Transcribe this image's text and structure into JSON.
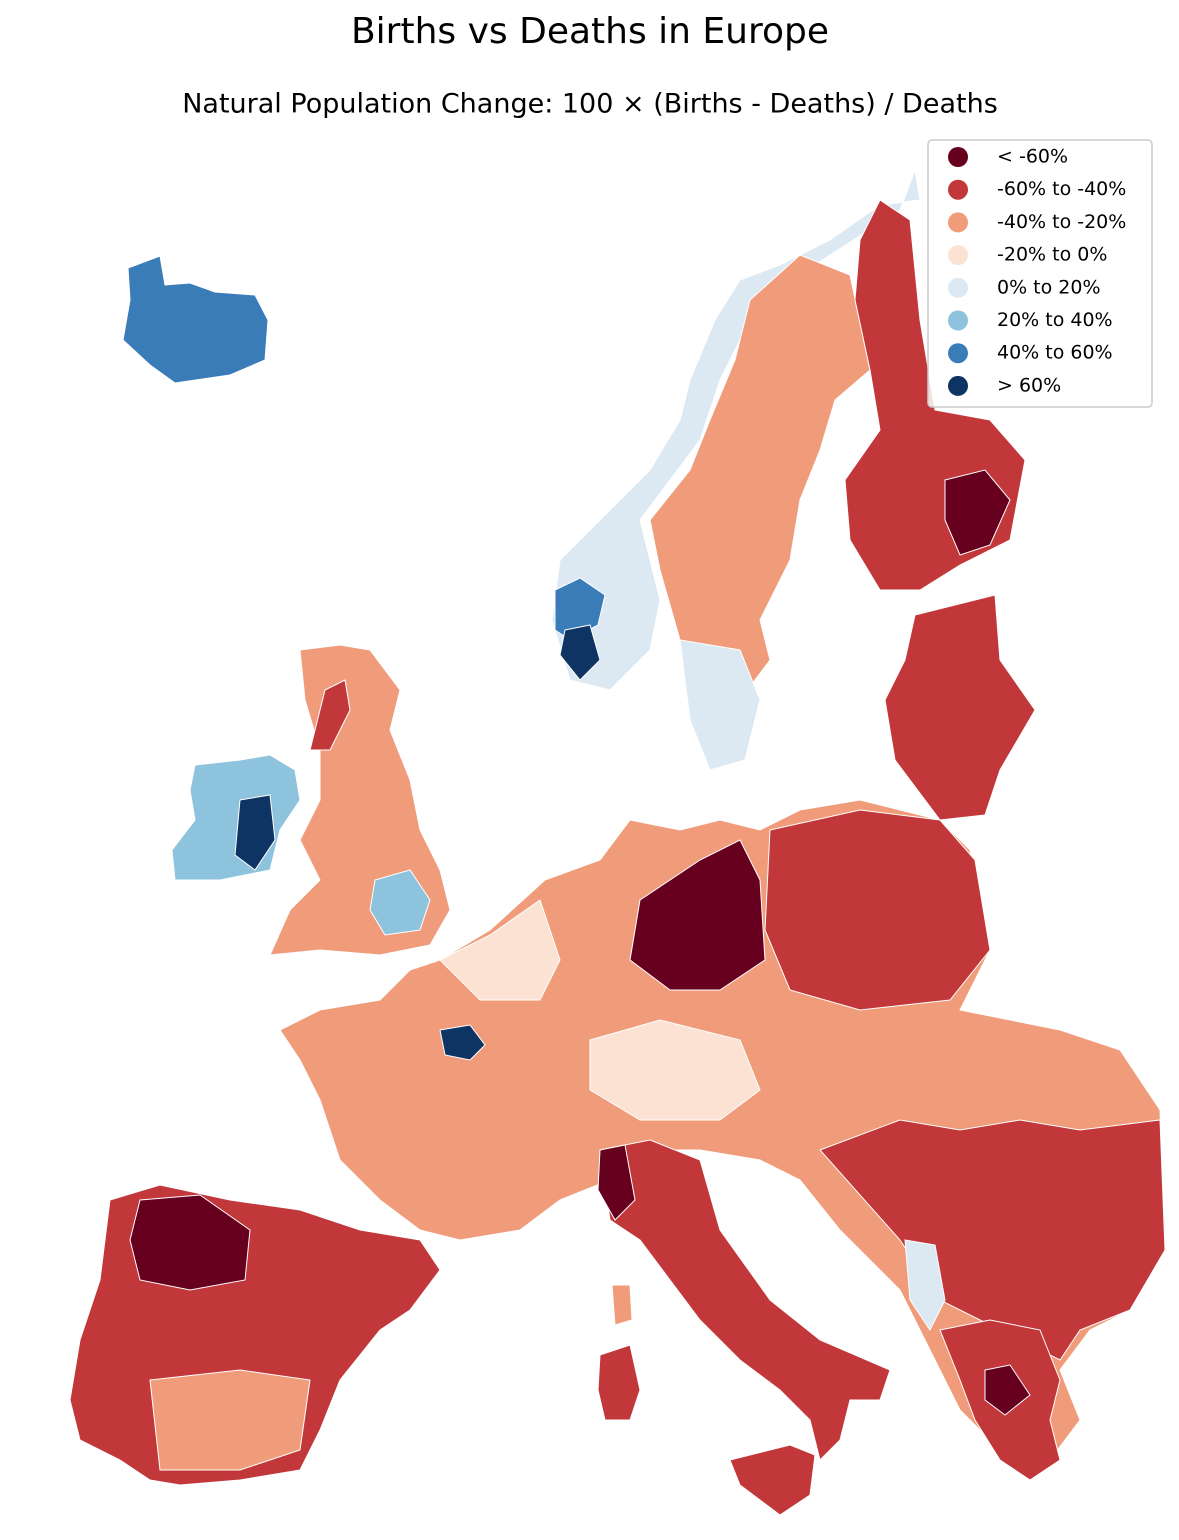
{
  "title": "Births vs Deaths in Europe",
  "subtitle": "Natural Population Change: 100 × (Births - Deaths) / Deaths",
  "legend": {
    "items": [
      {
        "label": "< -60%",
        "color": "#67001f"
      },
      {
        "label": "-60% to -40%",
        "color": "#c1373a"
      },
      {
        "label": "-40% to -20%",
        "color": "#f09c7b"
      },
      {
        "label": "-20% to 0%",
        "color": "#fbe2d3"
      },
      {
        "label": "0% to 20%",
        "color": "#dce9f3"
      },
      {
        "label": "20% to 40%",
        "color": "#8ec3de"
      },
      {
        "label": "40% to 60%",
        "color": "#3a7cb8"
      },
      {
        "label": "> 60%",
        "color": "#0d3463"
      }
    ]
  }
}
